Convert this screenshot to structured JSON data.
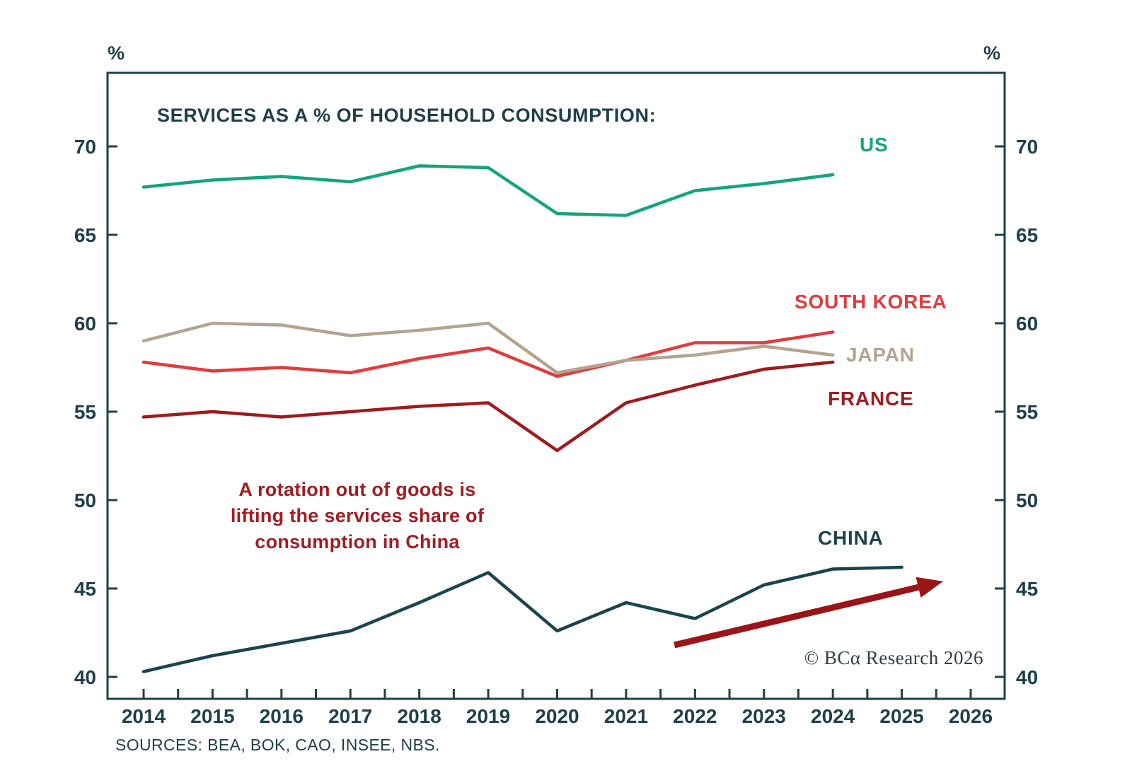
{
  "chart_data": {
    "type": "line",
    "title": "SERVICES AS A % OF HOUSEHOLD CONSUMPTION:",
    "unit": "%",
    "x_years": [
      2014,
      2015,
      2016,
      2017,
      2018,
      2019,
      2020,
      2021,
      2022,
      2023,
      2024,
      2025,
      2026
    ],
    "yticks": [
      40,
      45,
      50,
      55,
      60,
      65,
      70
    ],
    "ylim": [
      38.8,
      74.1
    ],
    "grid": false,
    "axis_color": "#1e3f4a",
    "text_color": "#1e3f4a",
    "series": [
      {
        "name": "US",
        "color": "#12a57e",
        "start": 2014,
        "values": [
          67.7,
          68.1,
          68.3,
          68.0,
          68.9,
          68.8,
          66.2,
          66.1,
          67.5,
          67.9,
          68.4
        ]
      },
      {
        "name": "SOUTH KOREA",
        "color": "#e23b3e",
        "start": 2014,
        "values": [
          57.8,
          57.3,
          57.5,
          57.2,
          58.0,
          58.6,
          57.0,
          57.9,
          58.9,
          58.9,
          59.5
        ]
      },
      {
        "name": "JAPAN",
        "color": "#b5a390",
        "start": 2014,
        "values": [
          59.0,
          60.0,
          59.9,
          59.3,
          59.6,
          60.0,
          57.2,
          57.9,
          58.2,
          58.7,
          58.2
        ]
      },
      {
        "name": "FRANCE",
        "color": "#9e1b1e",
        "start": 2014,
        "values": [
          54.7,
          55.0,
          54.7,
          55.0,
          55.3,
          55.5,
          52.8,
          55.5,
          56.5,
          57.4,
          57.8
        ]
      },
      {
        "name": "CHINA",
        "color": "#1c444e",
        "start": 2014,
        "values": [
          40.3,
          41.2,
          41.9,
          42.6,
          44.2,
          45.9,
          42.6,
          44.2,
          43.3,
          45.2,
          46.1,
          46.2
        ]
      }
    ],
    "annotation": {
      "lines": [
        "A rotation out of goods is",
        "lifting the services share of",
        "consumption in China"
      ],
      "color": "#a11d22"
    },
    "arrow": {
      "from": [
        2021.7,
        41.8
      ],
      "to": [
        2025.6,
        45.4
      ],
      "color": "#9a1518"
    },
    "copyright": "© BCα Research 2026",
    "sources": "SOURCES: BEA, BOK, CAO, INSEE, NBS."
  }
}
